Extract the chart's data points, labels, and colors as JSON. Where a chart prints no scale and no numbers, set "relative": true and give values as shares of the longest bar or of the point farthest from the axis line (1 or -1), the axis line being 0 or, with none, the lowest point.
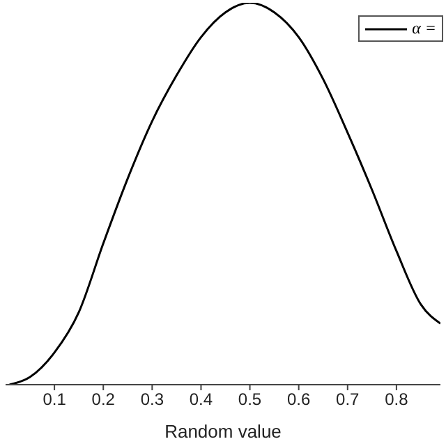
{
  "chart_data": {
    "type": "line",
    "xlabel": "Random value",
    "relative": true,
    "xlim": [
      0,
      0.89
    ],
    "xticks": [
      0.1,
      0.2,
      0.3,
      0.4,
      0.5,
      0.6,
      0.7,
      0.8
    ],
    "legend": "top right",
    "marker": "none",
    "line_style": "solid",
    "series": [
      {
        "name": "α =",
        "color": "#000000",
        "x": [
          0.008,
          0.05,
          0.1,
          0.15,
          0.2,
          0.25,
          0.3,
          0.35,
          0.4,
          0.45,
          0.5,
          0.55,
          0.6,
          0.65,
          0.7,
          0.75,
          0.8,
          0.85,
          0.89
        ],
        "values": [
          0,
          0.02,
          0.084,
          0.19,
          0.37,
          0.54,
          0.69,
          0.81,
          0.91,
          0.975,
          1,
          0.975,
          0.91,
          0.8,
          0.66,
          0.51,
          0.35,
          0.21,
          0.16
        ]
      }
    ]
  }
}
